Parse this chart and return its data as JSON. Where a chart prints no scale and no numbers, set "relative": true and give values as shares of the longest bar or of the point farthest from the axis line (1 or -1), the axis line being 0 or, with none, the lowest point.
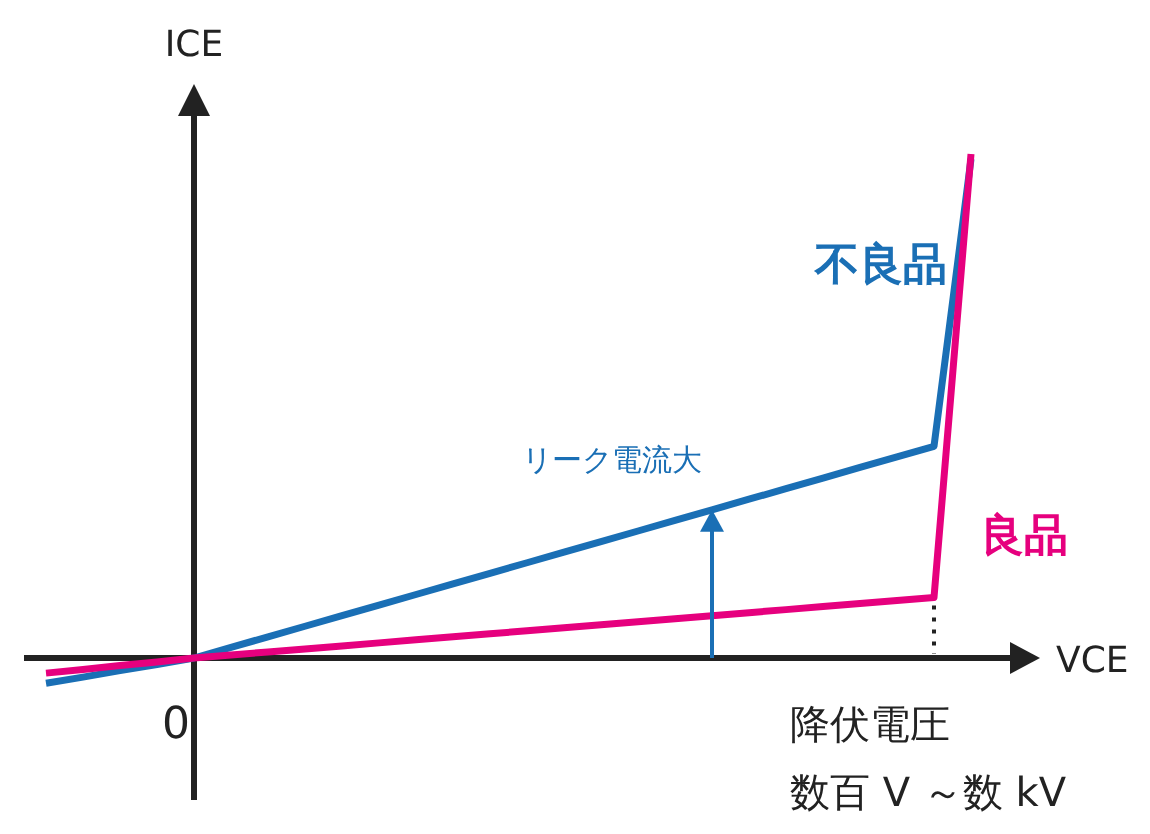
{
  "chart_data": {
    "type": "line",
    "relative": true,
    "xlabel": "VCE",
    "ylabel": "ICE",
    "marker": "none",
    "line_style": "solid",
    "categories": [
      null,
      null,
      null,
      null,
      null,
      null,
      null,
      null,
      null,
      null,
      null,
      null,
      null,
      null,
      null,
      null,
      null,
      null,
      null,
      null,
      null,
      null,
      null,
      null,
      null,
      null
    ],
    "series": [
      {
        "name": "不良品",
        "color": "#1a6fb5",
        "values": [
          -0.05,
          -0.038,
          -0.025,
          -0.013,
          0,
          0.021,
          0.042,
          0.063,
          0.084,
          0.105,
          0.126,
          0.147,
          0.168,
          0.189,
          0.21,
          0.231,
          0.252,
          0.273,
          0.294,
          0.315,
          0.336,
          0.357,
          0.378,
          0.399,
          0.42,
          0.99
        ]
      },
      {
        "name": "良品",
        "color": "#e6007e",
        "values": [
          -0.03,
          -0.023,
          -0.015,
          -0.008,
          0,
          0.006,
          0.012,
          0.018,
          0.024,
          0.03,
          0.036,
          0.042,
          0.048,
          0.054,
          0.06,
          0.066,
          0.072,
          0.078,
          0.084,
          0.09,
          0.096,
          0.102,
          0.108,
          0.114,
          0.12,
          1
        ]
      }
    ],
    "annotations": [
      "0",
      "リーク電流大",
      "降伏電圧",
      "数百 V ～数 kV"
    ]
  }
}
